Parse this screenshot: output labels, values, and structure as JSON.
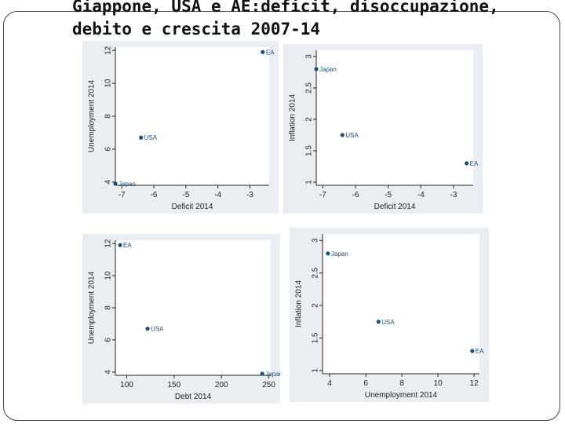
{
  "slide": {
    "title_line1": "Giappone, USA e AE:deficit, disoccupazione,",
    "title_line2": "debito e crescita 2007-14"
  },
  "colors": {
    "marker": "#1f4f7a",
    "panel_bg": "#eaeef2",
    "plot_bg": "#ffffff"
  },
  "chart_data": [
    {
      "type": "scatter",
      "xlabel": "Deficit 2014",
      "ylabel": "Unemployment 2014",
      "xlim": [
        -7.2,
        -2.4
      ],
      "ylim": [
        3.8,
        12.2
      ],
      "xticks": [
        -7,
        -6,
        -5,
        -4,
        -3
      ],
      "yticks": [
        4,
        6,
        8,
        10,
        12
      ],
      "points": [
        {
          "label": "EA",
          "x": -2.6,
          "y": 11.9
        },
        {
          "label": "USA",
          "x": -6.4,
          "y": 6.7
        },
        {
          "label": "Japan",
          "x": -7.2,
          "y": 3.9
        }
      ]
    },
    {
      "type": "scatter",
      "xlabel": "Deficit 2014",
      "ylabel": "Inflation 2014",
      "xlim": [
        -7.2,
        -2.4
      ],
      "ylim": [
        0.95,
        3.1
      ],
      "xticks": [
        -7,
        -6,
        -5,
        -4,
        -3
      ],
      "yticks": [
        1,
        1.5,
        2,
        2.5,
        3
      ],
      "points": [
        {
          "label": "Japan",
          "x": -7.2,
          "y": 2.8
        },
        {
          "label": "USA",
          "x": -6.4,
          "y": 1.75
        },
        {
          "label": "EA",
          "x": -2.6,
          "y": 1.3
        }
      ]
    },
    {
      "type": "scatter",
      "xlabel": "Debt 2014",
      "ylabel": "Unemployment 2014",
      "xlim": [
        88,
        252
      ],
      "ylim": [
        3.8,
        12.2
      ],
      "xticks": [
        100,
        150,
        200,
        250
      ],
      "yticks": [
        4,
        6,
        8,
        10,
        12
      ],
      "points": [
        {
          "label": "EA",
          "x": 93,
          "y": 11.9
        },
        {
          "label": "USA",
          "x": 122,
          "y": 6.7
        },
        {
          "label": "Japan",
          "x": 243,
          "y": 3.9
        }
      ]
    },
    {
      "type": "scatter",
      "xlabel": "Unemployment 2014",
      "ylabel": "Inflation 2014",
      "xlim": [
        3.6,
        12.3
      ],
      "ylim": [
        0.95,
        3.1
      ],
      "xticks": [
        4,
        6,
        8,
        10,
        12
      ],
      "yticks": [
        1,
        1.5,
        2,
        2.5,
        3
      ],
      "points": [
        {
          "label": "Japan",
          "x": 3.9,
          "y": 2.8
        },
        {
          "label": "USA",
          "x": 6.7,
          "y": 1.75
        },
        {
          "label": "EA",
          "x": 11.9,
          "y": 1.3
        }
      ]
    }
  ]
}
